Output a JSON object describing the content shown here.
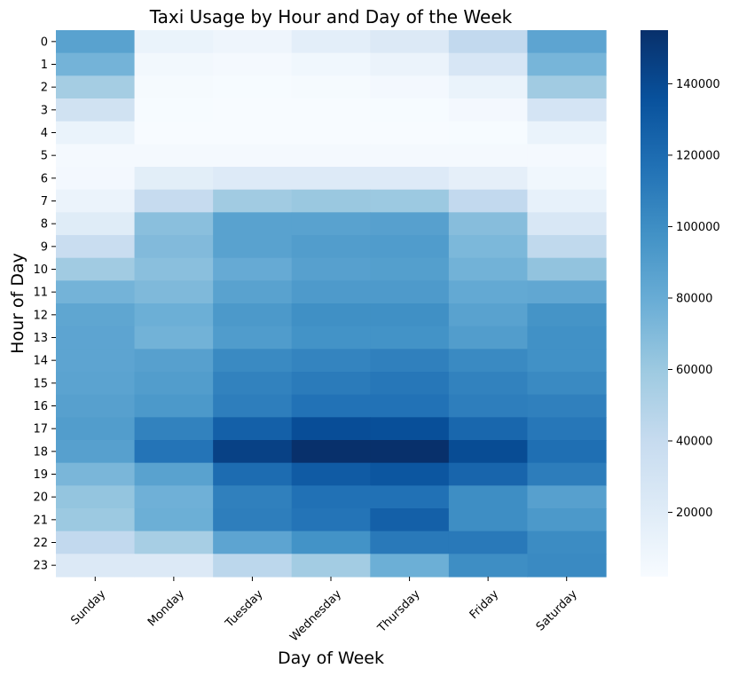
{
  "chart_data": {
    "type": "heatmap",
    "title": "Taxi Usage by Hour and Day of the Week",
    "xlabel": "Day of Week",
    "ylabel": "Hour of Day",
    "x_categories": [
      "Sunday",
      "Monday",
      "Tuesday",
      "Wednesday",
      "Thursday",
      "Friday",
      "Saturday"
    ],
    "y_categories": [
      "0",
      "1",
      "2",
      "3",
      "4",
      "5",
      "6",
      "7",
      "8",
      "9",
      "10",
      "11",
      "12",
      "13",
      "14",
      "15",
      "16",
      "17",
      "18",
      "19",
      "20",
      "21",
      "22",
      "23"
    ],
    "values": [
      [
        87000,
        12000,
        9000,
        17000,
        23000,
        42000,
        85000
      ],
      [
        75000,
        6000,
        4000,
        7000,
        11000,
        27000,
        74000
      ],
      [
        56000,
        3500,
        2500,
        3500,
        5000,
        12000,
        58000
      ],
      [
        32000,
        2500,
        2000,
        2000,
        2500,
        5000,
        29000
      ],
      [
        12000,
        2000,
        2000,
        2000,
        2000,
        2500,
        12000
      ],
      [
        4000,
        4000,
        4000,
        4000,
        4000,
        4000,
        4000
      ],
      [
        5000,
        18000,
        22000,
        22000,
        22000,
        16000,
        7000
      ],
      [
        11000,
        40000,
        58000,
        61000,
        60000,
        42000,
        14000
      ],
      [
        20000,
        67000,
        87000,
        87000,
        88000,
        68000,
        26000
      ],
      [
        38000,
        70000,
        87000,
        90000,
        91000,
        72000,
        43000
      ],
      [
        58000,
        67000,
        81000,
        88000,
        89000,
        76000,
        64000
      ],
      [
        75000,
        71000,
        87000,
        92000,
        92000,
        82000,
        83000
      ],
      [
        84000,
        78000,
        93000,
        99000,
        99000,
        87000,
        96000
      ],
      [
        85000,
        76000,
        91000,
        97000,
        97000,
        90000,
        98000
      ],
      [
        85000,
        88000,
        102000,
        106000,
        108000,
        102000,
        98000
      ],
      [
        86000,
        90000,
        107000,
        111000,
        113000,
        107000,
        102000
      ],
      [
        88000,
        93000,
        109000,
        116000,
        116000,
        109000,
        108000
      ],
      [
        90000,
        107000,
        127000,
        138000,
        137000,
        123000,
        113000
      ],
      [
        88000,
        115000,
        145000,
        155000,
        155000,
        139000,
        118000
      ],
      [
        73000,
        87000,
        120000,
        130000,
        133000,
        124000,
        110000
      ],
      [
        63000,
        77000,
        108000,
        117000,
        117000,
        100000,
        88000
      ],
      [
        60000,
        78000,
        109000,
        115000,
        127000,
        100000,
        93000
      ],
      [
        42000,
        55000,
        85000,
        97000,
        112000,
        112000,
        101000
      ],
      [
        23000,
        23000,
        45000,
        57000,
        78000,
        100000,
        102000
      ]
    ],
    "color_range": [
      2000,
      155000
    ],
    "colormap": [
      "#f7fbff",
      "#deebf7",
      "#c6dbef",
      "#9ecae1",
      "#6baed6",
      "#4292c6",
      "#2171b5",
      "#08519c",
      "#08306b"
    ],
    "colorbar_ticks": [
      20000,
      40000,
      60000,
      80000,
      100000,
      120000,
      140000
    ],
    "colorbar_tick_labels": [
      "20000",
      "40000",
      "60000",
      "80000",
      "100000",
      "120000",
      "140000"
    ]
  }
}
